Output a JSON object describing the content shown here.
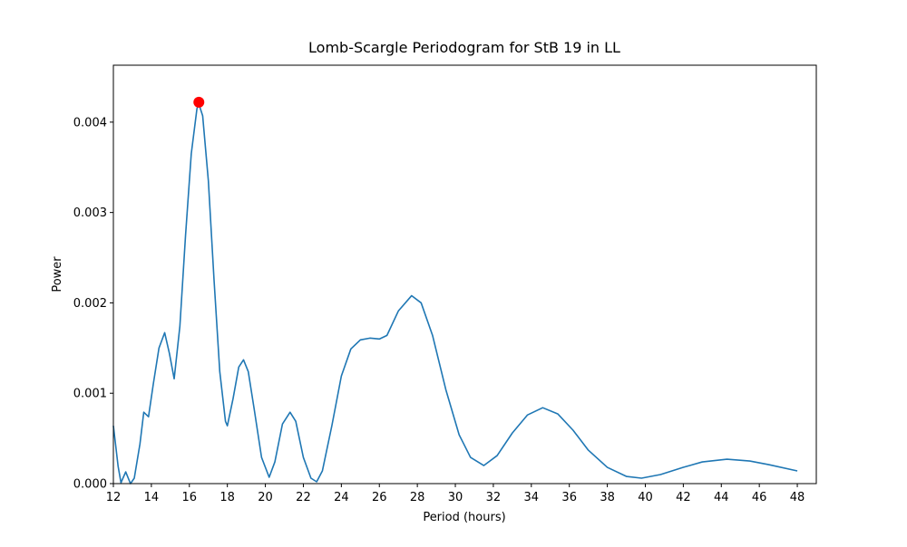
{
  "chart_data": {
    "type": "line",
    "title": "Lomb-Scargle Periodogram for StB 19 in LL",
    "x_label": "Period (hours)",
    "y_label": "Power",
    "xlim": [
      12,
      49.0
    ],
    "ylim": [
      0,
      0.00463
    ],
    "xticks": [
      12,
      14,
      16,
      18,
      20,
      22,
      24,
      26,
      28,
      30,
      32,
      34,
      36,
      38,
      40,
      42,
      44,
      46,
      48
    ],
    "yticks": [
      {
        "value": 0,
        "label": "0.000"
      },
      0.001,
      0.002,
      0.003,
      0.004
    ],
    "series": [
      {
        "color": "#1f77b4",
        "x": [
          12.0,
          12.25,
          12.4,
          12.65,
          12.9,
          13.1,
          13.4,
          13.6,
          13.85,
          14.1,
          14.4,
          14.7,
          14.95,
          15.2,
          15.5,
          15.8,
          16.1,
          16.4,
          16.5,
          16.7,
          17.0,
          17.3,
          17.6,
          17.9,
          18.0,
          18.3,
          18.6,
          18.85,
          19.1,
          19.4,
          19.8,
          20.2,
          20.5,
          20.9,
          21.3,
          21.6,
          22.0,
          22.4,
          22.7,
          23.0,
          23.5,
          24.0,
          24.5,
          25.0,
          25.5,
          26.0,
          26.4,
          27.0,
          27.7,
          28.2,
          28.8,
          29.5,
          30.2,
          30.8,
          31.5,
          32.2,
          33.0,
          33.8,
          34.6,
          35.4,
          36.2,
          37.0,
          38.0,
          39.0,
          39.8,
          40.8,
          42.0,
          43.0,
          44.3,
          45.5,
          46.5,
          48.0
        ],
        "values": [
          0.00064,
          0.00019,
          1e-05,
          0.00013,
          0.0,
          6e-05,
          0.00044,
          0.00079,
          0.00074,
          0.0011,
          0.0015,
          0.00167,
          0.00144,
          0.00116,
          0.00174,
          0.00275,
          0.00365,
          0.00415,
          0.0042,
          0.00407,
          0.00335,
          0.00225,
          0.00124,
          0.00069,
          0.00064,
          0.00094,
          0.00129,
          0.00137,
          0.00124,
          0.00084,
          0.00029,
          7e-05,
          0.00024,
          0.00066,
          0.00079,
          0.00069,
          0.00029,
          6e-05,
          2e-05,
          0.00014,
          0.00064,
          0.00119,
          0.00149,
          0.00159,
          0.00161,
          0.0016,
          0.00164,
          0.00191,
          0.00208,
          0.002,
          0.00164,
          0.00104,
          0.00054,
          0.00029,
          0.0002,
          0.00031,
          0.00056,
          0.00076,
          0.00084,
          0.00077,
          0.00059,
          0.00037,
          0.00018,
          8e-05,
          6e-05,
          0.0001,
          0.00018,
          0.00024,
          0.00027,
          0.00025,
          0.00021,
          0.00014
        ]
      }
    ],
    "peak": {
      "x": 16.5,
      "y": 0.00422,
      "color": "red"
    }
  }
}
